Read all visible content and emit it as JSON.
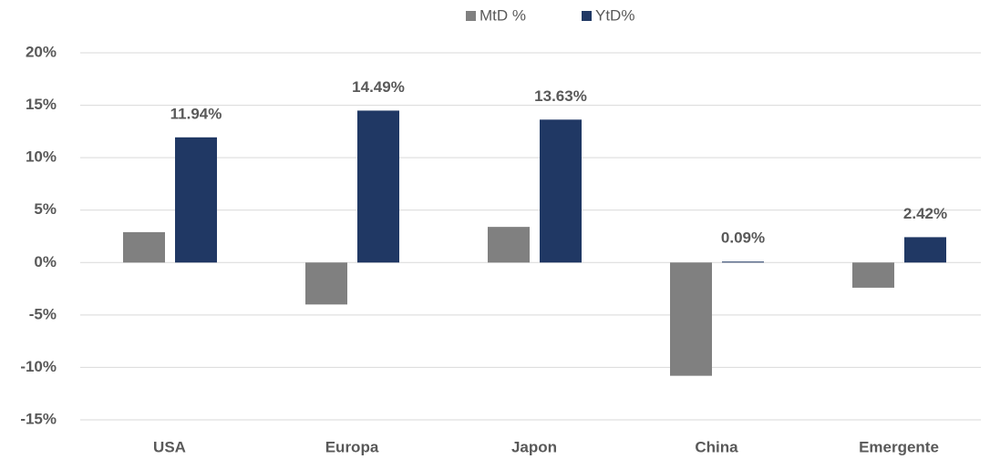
{
  "chart_data": {
    "type": "bar",
    "categories": [
      "USA",
      "Europa",
      "Japon",
      "China",
      "Emergente"
    ],
    "series": [
      {
        "name": "MtD %",
        "color": "#808080",
        "values": [
          2.9,
          -4.0,
          3.4,
          -10.8,
          -2.4
        ]
      },
      {
        "name": "YtD%",
        "color": "#203864",
        "values": [
          11.94,
          14.49,
          13.63,
          0.09,
          2.42
        ],
        "value_labels": [
          "11.94%",
          "14.49%",
          "13.63%",
          "0.09%",
          "2.42%"
        ]
      }
    ],
    "ylim": [
      -15,
      20
    ],
    "yticks": [
      {
        "value": -15,
        "label": "-15%"
      },
      {
        "value": -10,
        "label": "-10%"
      },
      {
        "value": -5,
        "label": "-5%"
      },
      {
        "value": 0,
        "label": "0%"
      },
      {
        "value": 5,
        "label": "5%"
      },
      {
        "value": 10,
        "label": "10%"
      },
      {
        "value": 15,
        "label": "15%"
      },
      {
        "value": 20,
        "label": "20%"
      }
    ],
    "grid": true,
    "legend": "top"
  }
}
